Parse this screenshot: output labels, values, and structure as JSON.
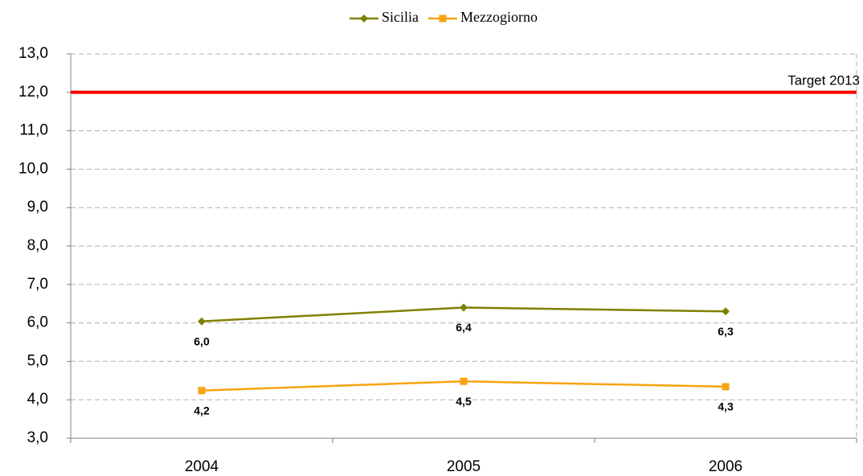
{
  "chart_data": {
    "type": "line",
    "categories": [
      "2004",
      "2005",
      "2006"
    ],
    "series": [
      {
        "name": "Sicilia",
        "color": "#808000",
        "marker": "diamond",
        "values": [
          6.04,
          6.4,
          6.3
        ],
        "value_labels": [
          "6,0",
          "6,4",
          "6,3"
        ]
      },
      {
        "name": "Mezzogiorno",
        "color": "#f7a30f",
        "marker": "square",
        "values": [
          4.24,
          4.48,
          4.34
        ],
        "value_labels": [
          "4,2",
          "4,5",
          "4,3"
        ]
      }
    ],
    "target": {
      "value": 12,
      "label": "Target 2013",
      "color": "#ff0000"
    },
    "ylim": [
      3,
      13
    ],
    "yticks": [
      {
        "value": 3,
        "label": "3,0"
      },
      {
        "value": 4,
        "label": "4,0"
      },
      {
        "value": 5,
        "label": "5,0"
      },
      {
        "value": 6,
        "label": "6,0"
      },
      {
        "value": 7,
        "label": "7,0"
      },
      {
        "value": 8,
        "label": "8,0"
      },
      {
        "value": 9,
        "label": "9,0"
      },
      {
        "value": 10,
        "label": "10,0"
      },
      {
        "value": 11,
        "label": "11,0"
      },
      {
        "value": 12,
        "label": "12,0"
      },
      {
        "value": 13,
        "label": "13,0"
      }
    ],
    "grid": true,
    "legend": "top"
  }
}
